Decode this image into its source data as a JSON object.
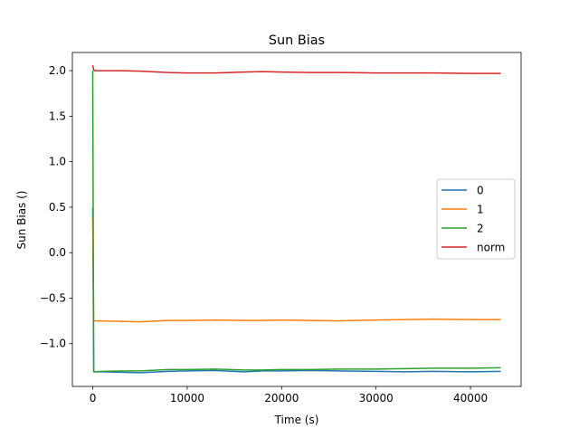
{
  "chart_data": {
    "type": "line",
    "title": "Sun Bias",
    "xlabel": "Time (s)",
    "ylabel": "Sun Bias ()",
    "xlim": [
      -2160,
      45360
    ],
    "ylim": [
      -1.47,
      2.2
    ],
    "x_ticks": [
      0,
      10000,
      20000,
      30000,
      40000
    ],
    "x_tick_labels": [
      "0",
      "10000",
      "20000",
      "30000",
      "40000"
    ],
    "y_ticks": [
      -1.0,
      -0.5,
      0.0,
      0.5,
      1.0,
      1.5,
      2.0
    ],
    "y_tick_labels": [
      "−1.0",
      "−0.5",
      "0.0",
      "0.5",
      "1.0",
      "1.5",
      "2.0"
    ],
    "grid": false,
    "legend_position": "center-right",
    "series": [
      {
        "name": "0",
        "color": "#1f77b4",
        "x": [
          0,
          100,
          300,
          1000,
          3000,
          5000,
          8000,
          10000,
          13000,
          16000,
          18000,
          20000,
          23000,
          26000,
          30000,
          33000,
          36000,
          40000,
          43200
        ],
        "y": [
          0.5,
          -1.31,
          -1.31,
          -1.31,
          -1.315,
          -1.32,
          -1.305,
          -1.3,
          -1.295,
          -1.31,
          -1.3,
          -1.3,
          -1.295,
          -1.3,
          -1.305,
          -1.31,
          -1.305,
          -1.31,
          -1.305
        ]
      },
      {
        "name": "1",
        "color": "#ff7f0e",
        "x": [
          0,
          100,
          300,
          1000,
          3000,
          5000,
          8000,
          10000,
          13000,
          16000,
          18000,
          20000,
          23000,
          26000,
          30000,
          33000,
          36000,
          40000,
          43200
        ],
        "y": [
          0.4,
          -0.75,
          -0.75,
          -0.75,
          -0.755,
          -0.76,
          -0.745,
          -0.745,
          -0.74,
          -0.745,
          -0.745,
          -0.74,
          -0.745,
          -0.75,
          -0.74,
          -0.735,
          -0.73,
          -0.735,
          -0.735
        ]
      },
      {
        "name": "2",
        "color": "#2ca02c",
        "x": [
          0,
          100,
          300,
          1000,
          3000,
          5000,
          8000,
          10000,
          13000,
          16000,
          18000,
          20000,
          23000,
          26000,
          30000,
          33000,
          36000,
          40000,
          43200
        ],
        "y": [
          2.0,
          -1.31,
          -1.31,
          -1.305,
          -1.3,
          -1.3,
          -1.285,
          -1.285,
          -1.28,
          -1.29,
          -1.29,
          -1.285,
          -1.285,
          -1.28,
          -1.28,
          -1.275,
          -1.27,
          -1.27,
          -1.265
        ]
      },
      {
        "name": "norm",
        "color": "#d62728",
        "x": [
          0,
          100,
          300,
          1000,
          3000,
          5000,
          8000,
          10000,
          13000,
          16000,
          18000,
          20000,
          23000,
          26000,
          30000,
          33000,
          36000,
          40000,
          43200
        ],
        "y": [
          2.06,
          2.005,
          2.0,
          2.0,
          2.0,
          1.995,
          1.98,
          1.975,
          1.975,
          1.985,
          1.99,
          1.985,
          1.98,
          1.98,
          1.975,
          1.975,
          1.975,
          1.97,
          1.97
        ]
      }
    ]
  }
}
